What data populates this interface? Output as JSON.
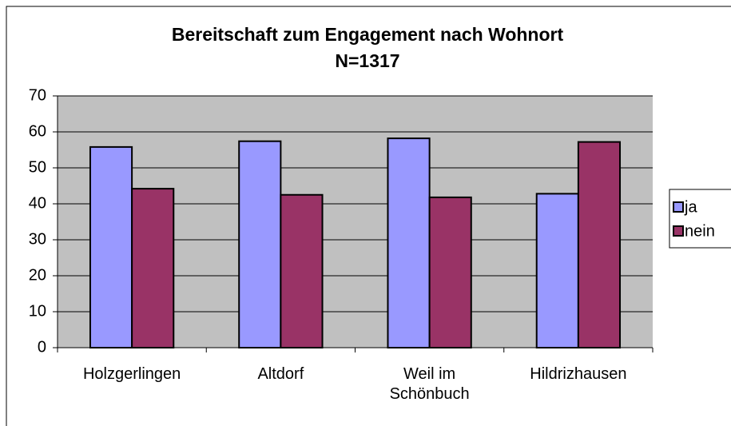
{
  "chart_data": {
    "type": "bar",
    "title": "Bereitschaft zum Engagement nach Wohnort",
    "subtitle": "N=1317",
    "categories": [
      "Holzgerlingen",
      "Altdorf",
      "Weil im Schönbuch",
      "Hildrizhausen"
    ],
    "series": [
      {
        "name": "ja",
        "color": "#9999ff",
        "values": [
          55.8,
          57.4,
          58.2,
          42.8
        ]
      },
      {
        "name": "nein",
        "color": "#993366",
        "values": [
          44.2,
          42.5,
          41.8,
          57.2
        ]
      }
    ],
    "ylim": [
      0,
      70
    ],
    "yticks": [
      0,
      10,
      20,
      30,
      40,
      50,
      60,
      70
    ],
    "grid": true,
    "legend": "right"
  }
}
